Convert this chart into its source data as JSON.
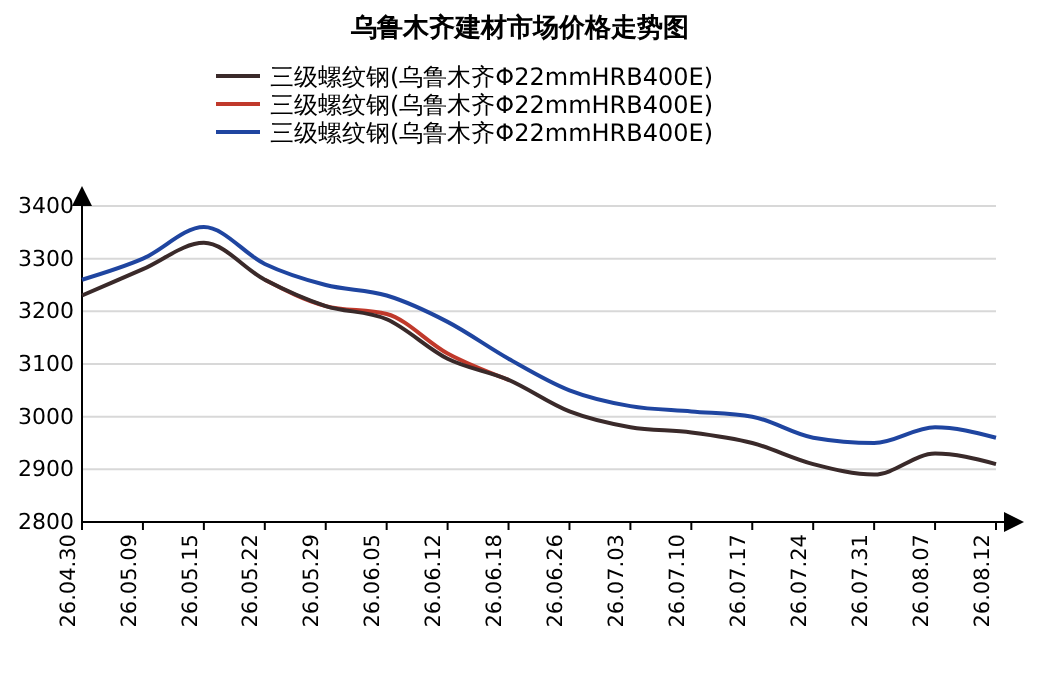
{
  "chart_data": {
    "type": "line",
    "title": "乌鲁木齐建材市场价格走势图",
    "categories": [
      "26.04.30",
      "26.05.09",
      "26.05.15",
      "26.05.22",
      "26.05.29",
      "26.06.05",
      "26.06.12",
      "26.06.18",
      "26.06.26",
      "26.07.03",
      "26.07.10",
      "26.07.17",
      "26.07.24",
      "26.07.31",
      "26.08.07",
      "26.08.12"
    ],
    "series": [
      {
        "name": "三级螺纹钢(乌鲁木齐Φ22mmHRB400E)",
        "color": "#3a2a2a",
        "values": [
          3230,
          3280,
          3330,
          3260,
          3210,
          3185,
          3110,
          3070,
          3010,
          2980,
          2970,
          2950,
          2910,
          2890,
          2930,
          2910
        ]
      },
      {
        "name": "三级螺纹钢(乌鲁木齐Φ22mmHRB400E)",
        "color": "#c0392b",
        "values": [
          null,
          null,
          null,
          3260,
          3210,
          3195,
          3120,
          3070,
          null,
          null,
          null,
          null,
          null,
          null,
          null,
          null
        ]
      },
      {
        "name": "三级螺纹钢(乌鲁木齐Φ22mmHRB400E)",
        "color": "#1f45a0",
        "values": [
          3260,
          3300,
          3360,
          3290,
          3250,
          3230,
          3180,
          3110,
          3050,
          3020,
          3010,
          3000,
          2960,
          2950,
          2980,
          2960
        ]
      }
    ],
    "ylim": [
      2800,
      3400
    ],
    "yticks": [
      2800,
      2900,
      3000,
      3100,
      3200,
      3300,
      3400
    ],
    "grid": "y",
    "legend": "top",
    "marker": "none",
    "line_style": "solid"
  }
}
